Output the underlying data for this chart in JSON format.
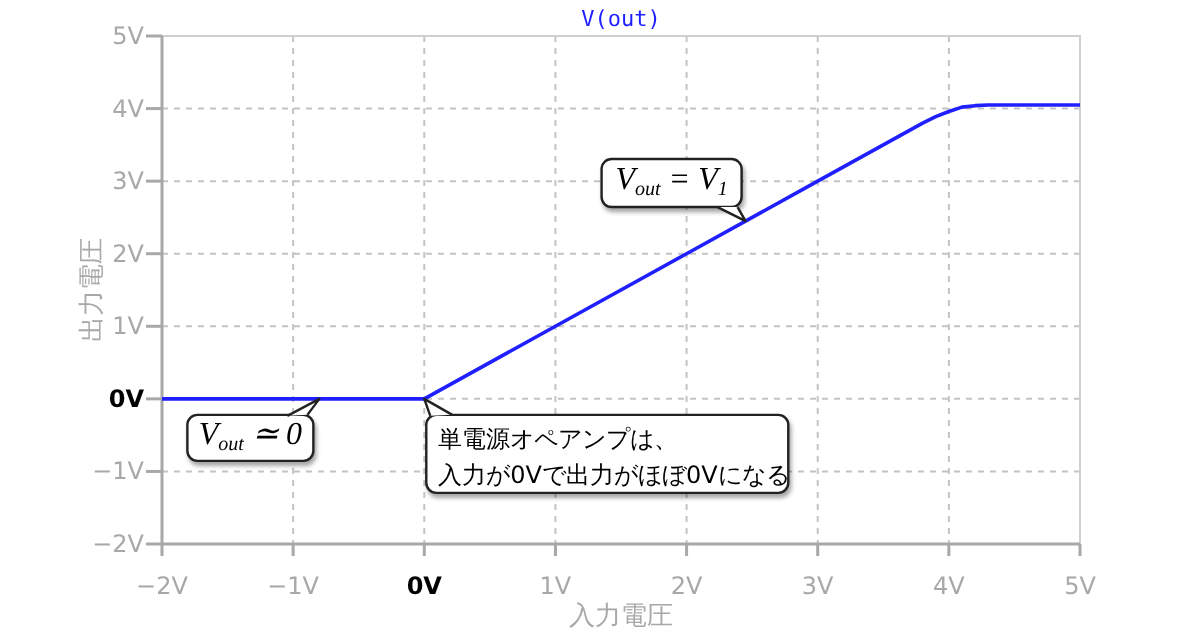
{
  "chart_data": {
    "type": "line",
    "title": "V(out)",
    "xlabel": "入力電圧",
    "ylabel": "出力電圧",
    "x": [
      -2,
      -1,
      0,
      1,
      2,
      3,
      3.8,
      3.9,
      4,
      4.1,
      4.2,
      4.3,
      4.5,
      5
    ],
    "series": [
      {
        "color": "#1f1fff",
        "values": [
          0,
          0,
          0,
          1,
          2,
          3,
          3.8,
          3.89,
          3.96,
          4.02,
          4.04,
          4.05,
          4.05,
          4.05
        ]
      }
    ],
    "xlim": [
      -2,
      5
    ],
    "ylim": [
      -2,
      5
    ],
    "xticks": [
      {
        "value": -2,
        "label": "−2V"
      },
      {
        "value": -1,
        "label": "−1V"
      },
      {
        "value": 0,
        "label": "0V"
      },
      {
        "value": 1,
        "label": "1V"
      },
      {
        "value": 2,
        "label": "2V"
      },
      {
        "value": 3,
        "label": "3V"
      },
      {
        "value": 4,
        "label": "4V"
      },
      {
        "value": 5,
        "label": "5V"
      }
    ],
    "yticks": [
      {
        "value": -2,
        "label": "−2V"
      },
      {
        "value": -1,
        "label": "−1V"
      },
      {
        "value": 0,
        "label": "0V"
      },
      {
        "value": 1,
        "label": "1V"
      },
      {
        "value": 2,
        "label": "2V"
      },
      {
        "value": 3,
        "label": "3V"
      },
      {
        "value": 4,
        "label": "4V"
      },
      {
        "value": 5,
        "label": "5V"
      }
    ],
    "grid": true,
    "annotations": [
      {
        "text": "V$_{out}$ = V$_{1}$",
        "x": 2.45,
        "y": 2.45
      },
      {
        "text": "V$_{out}$ ≃ 0",
        "x": -0.8,
        "y": 0
      },
      {
        "text": "単電源オペアンプは、入力が0Vで出力がほぼ0Vになる",
        "x": 0,
        "y": 0
      }
    ]
  }
}
